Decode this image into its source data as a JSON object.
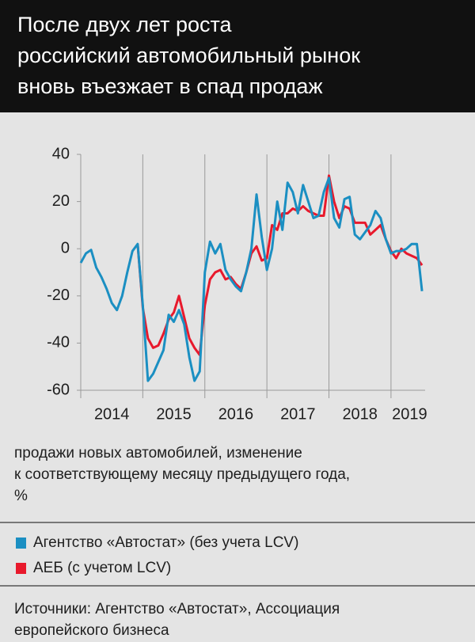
{
  "chart_data": {
    "type": "line",
    "title": [
      "После двух лет роста",
      "российский автомобильный рынок",
      "вновь въезжает в спад продаж"
    ],
    "y_label": [
      "продажи новых автомобилей, изменение",
      "к соответствующему месяцу предыдущего года,",
      "%"
    ],
    "source": [
      "Источники: Агентство «Автостат», Ассоциация",
      "европейского бизнеса"
    ],
    "x": [
      2014,
      2014.083,
      2014.167,
      2014.25,
      2014.333,
      2014.417,
      2014.5,
      2014.583,
      2014.667,
      2014.75,
      2014.833,
      2014.917,
      2015,
      2015.083,
      2015.167,
      2015.25,
      2015.333,
      2015.417,
      2015.5,
      2015.583,
      2015.667,
      2015.75,
      2015.833,
      2015.917,
      2016,
      2016.083,
      2016.167,
      2016.25,
      2016.333,
      2016.417,
      2016.5,
      2016.583,
      2016.667,
      2016.75,
      2016.833,
      2016.917,
      2017,
      2017.083,
      2017.167,
      2017.25,
      2017.333,
      2017.417,
      2017.5,
      2017.583,
      2017.667,
      2017.75,
      2017.833,
      2017.917,
      2018,
      2018.083,
      2018.167,
      2018.25,
      2018.333,
      2018.417,
      2018.5,
      2018.583,
      2018.667,
      2018.75,
      2018.833,
      2018.917,
      2019,
      2019.083,
      2019.167,
      2019.25,
      2019.333,
      2019.417,
      2019.5
    ],
    "series": [
      {
        "name": "Агентство «Автостат» (без учета LCV)",
        "color": "#1b8fc2",
        "values": [
          -6,
          -2,
          -0.5,
          -8,
          -12,
          -17,
          -23,
          -26,
          -20,
          -10,
          -1,
          2,
          -24,
          -56,
          -53,
          -48,
          -43,
          -28,
          -31,
          -26,
          -32,
          -46,
          -56,
          -52,
          -10,
          3,
          -2,
          2,
          -9,
          -13,
          -16,
          -18,
          -10,
          0,
          23,
          5,
          -9,
          0,
          20,
          8,
          28,
          24,
          15,
          27,
          20,
          13,
          14,
          24,
          30,
          13,
          9,
          21,
          22,
          6,
          4,
          7,
          10,
          16,
          13,
          4,
          -2,
          -1,
          -1,
          0,
          2,
          2,
          -18
        ]
      },
      {
        "name": "АЕБ (с учетом LCV)",
        "color": "#e8192c",
        "values": [
          null,
          null,
          null,
          null,
          null,
          null,
          null,
          null,
          null,
          null,
          null,
          2,
          -25,
          -38,
          -42,
          -41,
          -36,
          -30,
          -27,
          -20,
          -29,
          -38,
          -42,
          -45,
          -24,
          -13,
          -10,
          -9,
          -13,
          -12,
          -15,
          -17,
          -10,
          -2,
          1,
          -5,
          -4,
          10,
          8,
          15,
          15,
          17,
          16,
          18,
          16,
          15,
          14,
          14,
          31,
          20,
          13,
          18,
          17,
          11,
          11,
          11,
          6,
          8,
          10,
          4,
          -1,
          -4,
          0,
          -2,
          -3,
          -4,
          -7
        ]
      }
    ],
    "xlim": [
      2014,
      2019.55
    ],
    "xticks": [
      {
        "value": 2014.5,
        "label": "2014"
      },
      {
        "value": 2015.5,
        "label": "2015"
      },
      {
        "value": 2016.5,
        "label": "2016"
      },
      {
        "value": 2017.5,
        "label": "2017"
      },
      {
        "value": 2018.5,
        "label": "2018"
      },
      {
        "value": 2019.3,
        "label": "2019"
      }
    ],
    "xgrid": [
      2014,
      2015,
      2016,
      2017,
      2018,
      2019
    ],
    "ylim": [
      -60,
      40
    ],
    "yticks": [
      -60,
      -40,
      -20,
      0,
      20,
      40
    ]
  }
}
